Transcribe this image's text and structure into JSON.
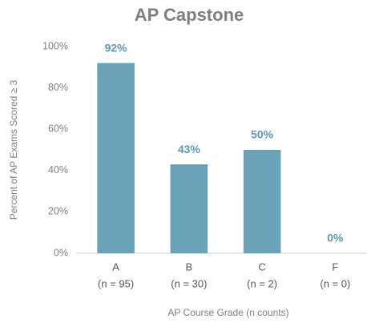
{
  "chart_data": {
    "type": "bar",
    "title": "AP Capstone",
    "categories": [
      "A",
      "B",
      "C",
      "F"
    ],
    "category_counts": [
      "(n = 95)",
      "(n = 30)",
      "(n = 2)",
      "(n = 0)"
    ],
    "values": [
      92,
      43,
      50,
      0
    ],
    "value_labels": [
      "92%",
      "43%",
      "50%",
      "0%"
    ],
    "color": "#6aa3b7",
    "x_label": "AP Course Grade (n counts)",
    "y_label": "Percent of AP Exams Scored ≥ 3",
    "ylim": [
      0,
      100
    ],
    "yticks": [
      {
        "value": 0,
        "label": "0%"
      },
      {
        "value": 20,
        "label": "20%"
      },
      {
        "value": 40,
        "label": "40%"
      },
      {
        "value": 60,
        "label": "60%"
      },
      {
        "value": 80,
        "label": "80%"
      },
      {
        "value": 100,
        "label": "100%"
      }
    ],
    "grid": false
  }
}
